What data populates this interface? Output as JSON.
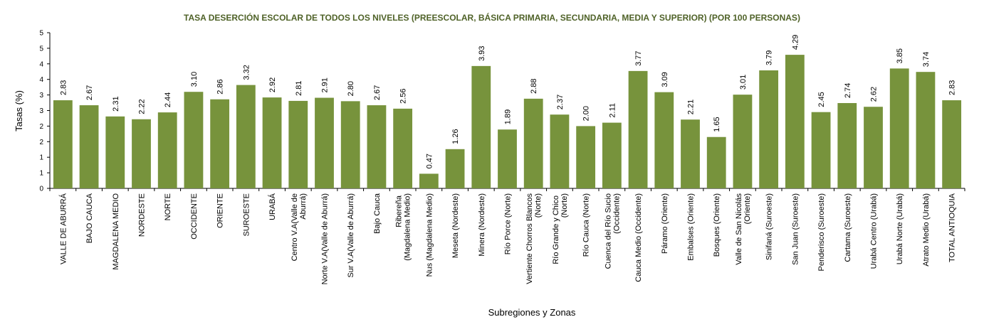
{
  "chart_data": {
    "type": "bar",
    "title": "TASA DESERCIÓN ESCOLAR DE TODOS LOS NIVELES (PREESCOLAR, BÁSICA PRIMARIA, SECUNDARIA, MEDIA Y SUPERIOR) (POR 100 PERSONAS)",
    "xlabel": "Subregiones y Zonas",
    "ylabel": "Tasas (%)",
    "ylim": [
      0,
      5
    ],
    "yticks": [
      {
        "value": 0,
        "label": "0"
      },
      {
        "value": 0.5,
        "label": "1"
      },
      {
        "value": 1,
        "label": "1"
      },
      {
        "value": 1.5,
        "label": "2"
      },
      {
        "value": 2,
        "label": "2"
      },
      {
        "value": 2.5,
        "label": "3"
      },
      {
        "value": 3,
        "label": "3"
      },
      {
        "value": 3.5,
        "label": "4"
      },
      {
        "value": 4,
        "label": "4"
      },
      {
        "value": 4.5,
        "label": "5"
      },
      {
        "value": 5,
        "label": "5"
      }
    ],
    "grid": false,
    "legend": "none",
    "bar_color": "#77933c",
    "title_color": "#4f6228",
    "categories": [
      "VALLE DE ABURRÁ",
      "BAJO CAUCA",
      "MAGDALENA MEDIO",
      "NORDESTE",
      "NORTE",
      "OCCIDENTE",
      "ORIENTE",
      "SUROESTE",
      "URABÁ",
      "Centro V.A(Valle de Aburrá)",
      "Norte V.A(Valle de Aburrá)",
      "Sur V.A(Valle de Aburrá)",
      "Bajo Cauca",
      "Ribereña  (Magdalena Medio)",
      "Nus  (Magdalena Medio)",
      "Meseta  (Nordeste)",
      "Minera  (Nordeste)",
      "Río Porce    (Norte)",
      "Vertiente Chorros Blancos (Norte)",
      "Río Grande y Chico  (Norte)",
      "Río Cauca  (Norte)",
      "Cuenca del Río Sucio (Occidente)",
      "Cauca Medio  (Occidente)",
      "Páramo  (Oriente)",
      "Embalses  (Oriente)",
      "Bosques  (Oriente)",
      "Valle de San Nicolás (Oriente)",
      "Sinifaná  (Suroeste)",
      "San Juan  (Suroeste)",
      "Penderisco (Suroeste)",
      "Cartama  (Suroeste)",
      "Urabá Centro  (Urabá)",
      "Urabá Norte  (Urabá)",
      "Atrato Medio  (Urabá)",
      "TOTAL ANTIOQUIA"
    ],
    "values": [
      2.83,
      2.67,
      2.31,
      2.22,
      2.44,
      3.1,
      2.86,
      3.32,
      2.92,
      2.81,
      2.91,
      2.8,
      2.67,
      2.56,
      0.47,
      1.26,
      3.93,
      1.89,
      2.88,
      2.37,
      2.0,
      2.11,
      3.77,
      3.09,
      2.21,
      1.65,
      3.01,
      3.79,
      4.29,
      2.45,
      2.74,
      2.62,
      3.85,
      3.74,
      2.83
    ],
    "value_labels": [
      "2.83",
      "2.67",
      "2.31",
      "2.22",
      "2.44",
      "3.10",
      "2.86",
      "3.32",
      "2.92",
      "2.81",
      "2.91",
      "2.80",
      "2.67",
      "2.56",
      "0.47",
      "1.26",
      "3.93",
      "1.89",
      "2.88",
      "2.37",
      "2.00",
      "2.11",
      "3.77",
      "3.09",
      "2.21",
      "1.65",
      "3.01",
      "3.79",
      "4.29",
      "2.45",
      "2.74",
      "2.62",
      "3.85",
      "3.74",
      "2.83"
    ]
  }
}
